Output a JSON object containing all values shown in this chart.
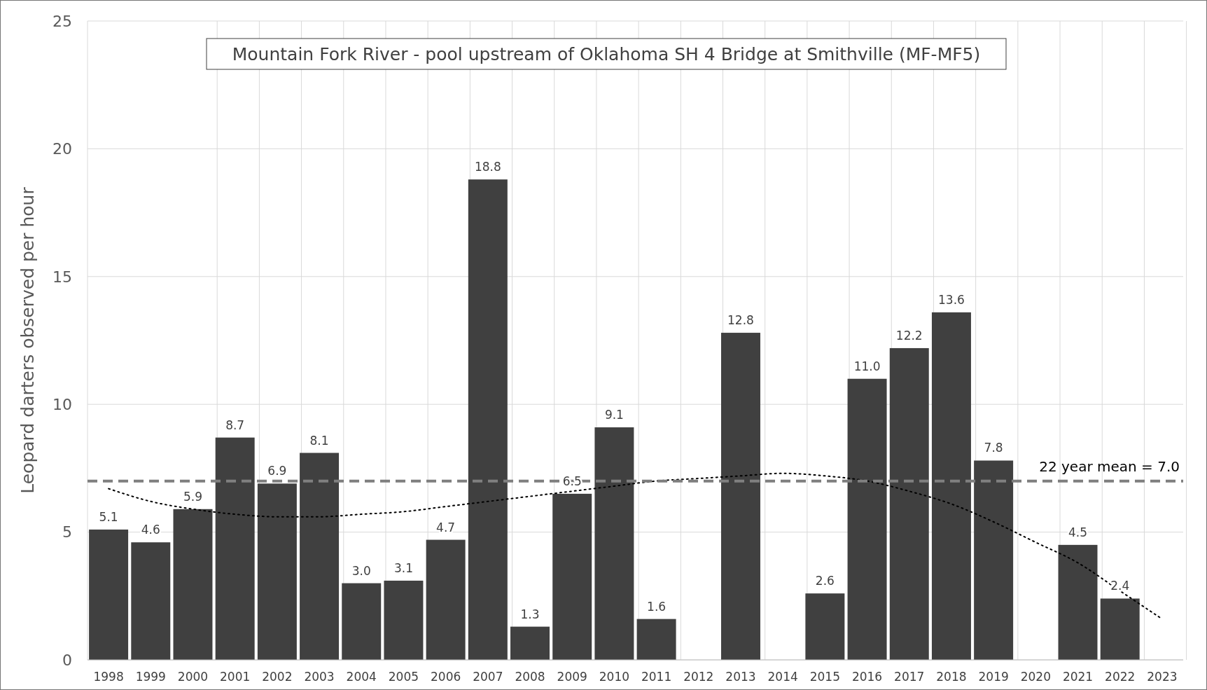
{
  "chart_data": {
    "type": "bar",
    "title": "Mountain Fork River - pool upstream of Oklahoma SH 4 Bridge at Smithville (MF-MF5)",
    "ylabel": "Leopard darters observed per hour",
    "categories": [
      "1998",
      "1999",
      "2000",
      "2001",
      "2002",
      "2003",
      "2004",
      "2005",
      "2006",
      "2007",
      "2008",
      "2009",
      "2010",
      "2011",
      "2012",
      "2013",
      "2014",
      "2015",
      "2016",
      "2017",
      "2018",
      "2019",
      "2020",
      "2021",
      "2022",
      "2023"
    ],
    "series": [
      {
        "color": "#404040",
        "values": [
          5.1,
          4.6,
          5.9,
          8.7,
          6.9,
          8.1,
          3.0,
          3.1,
          4.7,
          18.8,
          1.3,
          6.5,
          9.1,
          1.6,
          null,
          12.8,
          null,
          2.6,
          11.0,
          12.2,
          13.6,
          7.8,
          null,
          4.5,
          2.4,
          null
        ],
        "value_labels": [
          "5.1",
          "4.6",
          "5.9",
          "8.7",
          "6.9",
          "8.1",
          "3.0",
          "3.1",
          "4.7",
          "18.8",
          "1.3",
          "6.5",
          "9.1",
          "1.6",
          null,
          "12.8",
          null,
          "2.6",
          "11.0",
          "12.2",
          "13.6",
          "7.8",
          null,
          "4.5",
          "2.4",
          null
        ]
      },
      {
        "type": "line",
        "color": "#000000",
        "line_style": "dotted",
        "values": [
          6.7,
          6.2,
          5.9,
          5.7,
          5.6,
          5.6,
          5.7,
          5.8,
          6.0,
          6.2,
          6.4,
          6.6,
          6.8,
          7.0,
          7.1,
          7.2,
          7.3,
          7.2,
          7.0,
          6.6,
          6.1,
          5.4,
          4.6,
          3.8,
          2.7,
          1.6
        ]
      }
    ],
    "ylim": [
      0,
      25
    ],
    "yticks": [
      0,
      5,
      10,
      15,
      20,
      25
    ],
    "grid": true,
    "ref_lines": [
      {
        "axis": "y",
        "value": 7.0,
        "label": "22 year mean = 7.0",
        "color": "#7f7f7f",
        "line_style": "dashed"
      }
    ]
  }
}
